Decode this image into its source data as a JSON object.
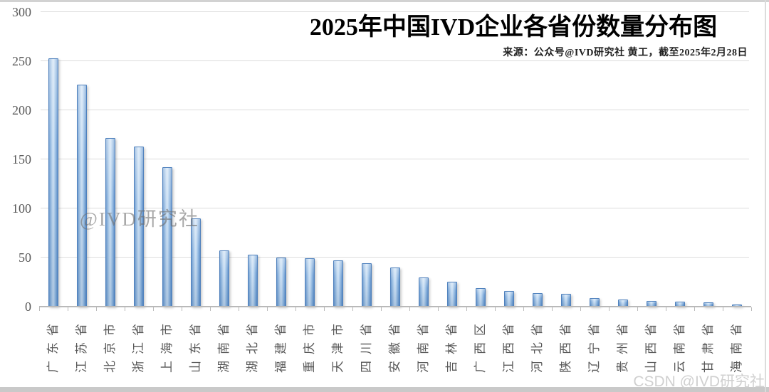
{
  "page": {
    "title": "2025年中国IVD企业各省份数量分布图",
    "source_note": "来源：公众号@IVD研究社 黄工，截至2025年2月28日",
    "watermark_center": "@IVD研究社",
    "watermark_bottom_right": "CSDN @IVD研究社"
  },
  "chart_data": {
    "type": "bar",
    "title": "2025年中国IVD企业各省份数量分布图",
    "subtitle": "来源：公众号@IVD研究社 黄工，截至2025年2月28日",
    "categories": [
      "广东省",
      "江苏省",
      "北京市",
      "浙江省",
      "上海市",
      "山东省",
      "湖南省",
      "湖北省",
      "福建省",
      "重庆市",
      "天津市",
      "四川省",
      "安徽省",
      "河南省",
      "吉林省",
      "广西区",
      "江西省",
      "河北省",
      "陕西省",
      "辽宁省",
      "贵州省",
      "山西省",
      "云南省",
      "甘肃省",
      "海南省"
    ],
    "values": [
      253,
      226,
      172,
      163,
      142,
      90,
      57,
      53,
      50,
      49,
      47,
      44,
      40,
      30,
      25,
      19,
      16,
      14,
      13,
      9,
      7,
      6,
      5,
      4,
      2
    ],
    "xlabel": "",
    "ylabel": "",
    "ylim": [
      0,
      300
    ],
    "yticks": [
      0,
      50,
      100,
      150,
      200,
      250,
      300
    ],
    "grid": "horizontal",
    "legend": "none",
    "colors": {
      "bar_fill": "#5B9BD5",
      "bar_border": "#4F81BD",
      "gridline": "#DCDCDC",
      "axis_line": "#B9B9B9",
      "tick_label": "#595959",
      "title": "#000000"
    }
  }
}
